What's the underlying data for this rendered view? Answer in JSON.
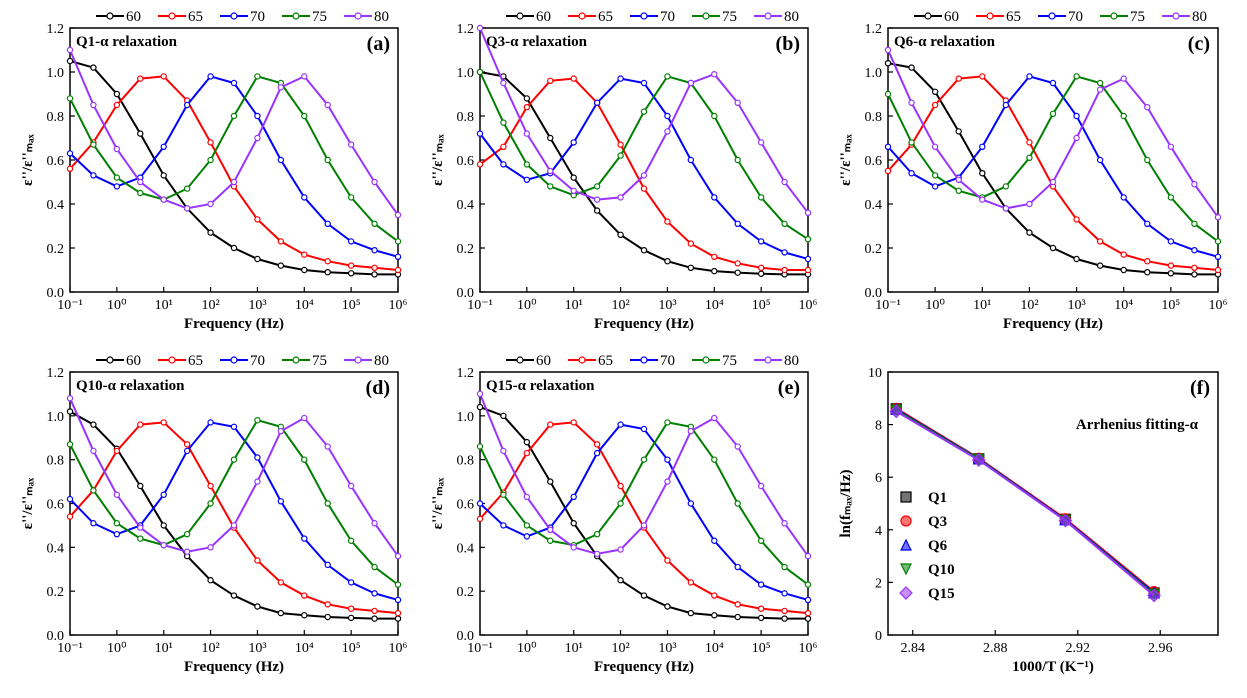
{
  "chart_data": [
    {
      "type": "line",
      "title": "Q1-α relaxation",
      "panel_label": "(a)",
      "x_label": "Frequency (Hz)",
      "y_label": "ε''/ε''ₘₐₓ",
      "xscale": "log",
      "x": [
        0.1,
        0.316,
        1,
        3.16,
        10,
        31.6,
        100,
        316,
        1000,
        3160,
        10000,
        31600,
        100000,
        316000,
        1000000
      ],
      "xlim": [
        0.1,
        1000000
      ],
      "ylim": [
        0,
        1.2
      ],
      "xticks": [
        {
          "value": 0.1,
          "label": "10⁻¹"
        },
        {
          "value": 1,
          "label": "10⁰"
        },
        {
          "value": 10,
          "label": "10¹"
        },
        {
          "value": 100,
          "label": "10²"
        },
        {
          "value": 1000,
          "label": "10³"
        },
        {
          "value": 10000,
          "label": "10⁴"
        },
        {
          "value": 100000,
          "label": "10⁵"
        },
        {
          "value": 1000000,
          "label": "10⁶"
        }
      ],
      "yticks": [
        {
          "value": 0,
          "label": "0.0"
        },
        {
          "value": 0.2,
          "label": "0.2"
        },
        {
          "value": 0.4,
          "label": "0.4"
        },
        {
          "value": 0.6,
          "label": "0.6"
        },
        {
          "value": 0.8,
          "label": "0.8"
        },
        {
          "value": 1.0,
          "label": "1.0"
        },
        {
          "value": 1.2,
          "label": "1.2"
        }
      ],
      "series": [
        {
          "name": "60",
          "color": "#000000",
          "values": [
            1.05,
            1.02,
            0.9,
            0.72,
            0.53,
            0.38,
            0.27,
            0.2,
            0.15,
            0.12,
            0.1,
            0.09,
            0.085,
            0.08,
            0.08
          ]
        },
        {
          "name": "65",
          "color": "#ff0000",
          "values": [
            0.56,
            0.68,
            0.85,
            0.97,
            0.98,
            0.87,
            0.68,
            0.48,
            0.33,
            0.23,
            0.17,
            0.14,
            0.12,
            0.11,
            0.1
          ]
        },
        {
          "name": "70",
          "color": "#0000ff",
          "values": [
            0.63,
            0.53,
            0.48,
            0.52,
            0.66,
            0.85,
            0.98,
            0.95,
            0.8,
            0.6,
            0.43,
            0.31,
            0.23,
            0.19,
            0.16
          ]
        },
        {
          "name": "75",
          "color": "#008000",
          "values": [
            0.88,
            0.67,
            0.52,
            0.45,
            0.42,
            0.47,
            0.6,
            0.8,
            0.98,
            0.95,
            0.8,
            0.6,
            0.43,
            0.31,
            0.23
          ]
        },
        {
          "name": "80",
          "color": "#9933ff",
          "values": [
            1.1,
            0.85,
            0.65,
            0.5,
            0.42,
            0.38,
            0.4,
            0.5,
            0.7,
            0.93,
            0.98,
            0.85,
            0.67,
            0.5,
            0.35
          ]
        }
      ]
    },
    {
      "type": "line",
      "title": "Q3-α relaxation",
      "panel_label": "(b)",
      "x_label": "Frequency (Hz)",
      "y_label": "ε''/ε''ₘₐₓ",
      "xscale": "log",
      "x": [
        0.1,
        0.316,
        1,
        3.16,
        10,
        31.6,
        100,
        316,
        1000,
        3160,
        10000,
        31600,
        100000,
        316000,
        1000000
      ],
      "xlim": [
        0.1,
        1000000
      ],
      "ylim": [
        0,
        1.2
      ],
      "xticks": [
        {
          "value": 0.1,
          "label": "10⁻¹"
        },
        {
          "value": 1,
          "label": "10⁰"
        },
        {
          "value": 10,
          "label": "10¹"
        },
        {
          "value": 100,
          "label": "10²"
        },
        {
          "value": 1000,
          "label": "10³"
        },
        {
          "value": 10000,
          "label": "10⁴"
        },
        {
          "value": 100000,
          "label": "10⁵"
        },
        {
          "value": 1000000,
          "label": "10⁶"
        }
      ],
      "yticks": [
        {
          "value": 0,
          "label": "0.0"
        },
        {
          "value": 0.2,
          "label": "0.2"
        },
        {
          "value": 0.4,
          "label": "0.4"
        },
        {
          "value": 0.6,
          "label": "0.6"
        },
        {
          "value": 0.8,
          "label": "0.8"
        },
        {
          "value": 1.0,
          "label": "1.0"
        },
        {
          "value": 1.2,
          "label": "1.2"
        }
      ],
      "series": [
        {
          "name": "60",
          "color": "#000000",
          "values": [
            1.0,
            0.98,
            0.88,
            0.7,
            0.52,
            0.37,
            0.26,
            0.19,
            0.14,
            0.11,
            0.095,
            0.088,
            0.083,
            0.08,
            0.08
          ]
        },
        {
          "name": "65",
          "color": "#ff0000",
          "values": [
            0.58,
            0.66,
            0.84,
            0.96,
            0.97,
            0.86,
            0.67,
            0.47,
            0.32,
            0.22,
            0.16,
            0.13,
            0.11,
            0.1,
            0.1
          ]
        },
        {
          "name": "70",
          "color": "#0000ff",
          "values": [
            0.72,
            0.58,
            0.51,
            0.54,
            0.68,
            0.86,
            0.97,
            0.95,
            0.8,
            0.6,
            0.43,
            0.31,
            0.23,
            0.18,
            0.15
          ]
        },
        {
          "name": "75",
          "color": "#008000",
          "values": [
            1.0,
            0.77,
            0.58,
            0.48,
            0.44,
            0.48,
            0.62,
            0.82,
            0.98,
            0.95,
            0.8,
            0.6,
            0.43,
            0.31,
            0.24
          ]
        },
        {
          "name": "80",
          "color": "#9933ff",
          "values": [
            1.2,
            0.95,
            0.72,
            0.55,
            0.46,
            0.42,
            0.43,
            0.53,
            0.73,
            0.95,
            0.99,
            0.86,
            0.68,
            0.5,
            0.36
          ]
        }
      ]
    },
    {
      "type": "line",
      "title": "Q6-α relaxation",
      "panel_label": "(c)",
      "x_label": "Frequency (Hz)",
      "y_label": "ε''/ε''ₘₐₓ",
      "xscale": "log",
      "x": [
        0.1,
        0.316,
        1,
        3.16,
        10,
        31.6,
        100,
        316,
        1000,
        3160,
        10000,
        31600,
        100000,
        316000,
        1000000
      ],
      "xlim": [
        0.1,
        1000000
      ],
      "ylim": [
        0,
        1.2
      ],
      "xticks": [
        {
          "value": 0.1,
          "label": "10⁻¹"
        },
        {
          "value": 1,
          "label": "10⁰"
        },
        {
          "value": 10,
          "label": "10¹"
        },
        {
          "value": 100,
          "label": "10²"
        },
        {
          "value": 1000,
          "label": "10³"
        },
        {
          "value": 10000,
          "label": "10⁴"
        },
        {
          "value": 100000,
          "label": "10⁵"
        },
        {
          "value": 1000000,
          "label": "10⁶"
        }
      ],
      "yticks": [
        {
          "value": 0,
          "label": "0.0"
        },
        {
          "value": 0.2,
          "label": "0.2"
        },
        {
          "value": 0.4,
          "label": "0.4"
        },
        {
          "value": 0.6,
          "label": "0.6"
        },
        {
          "value": 0.8,
          "label": "0.8"
        },
        {
          "value": 1.0,
          "label": "1.0"
        },
        {
          "value": 1.2,
          "label": "1.2"
        }
      ],
      "series": [
        {
          "name": "60",
          "color": "#000000",
          "values": [
            1.04,
            1.02,
            0.91,
            0.73,
            0.54,
            0.38,
            0.27,
            0.2,
            0.15,
            0.12,
            0.1,
            0.09,
            0.085,
            0.08,
            0.08
          ]
        },
        {
          "name": "65",
          "color": "#ff0000",
          "values": [
            0.55,
            0.67,
            0.85,
            0.97,
            0.98,
            0.87,
            0.68,
            0.48,
            0.33,
            0.23,
            0.17,
            0.14,
            0.12,
            0.11,
            0.1
          ]
        },
        {
          "name": "70",
          "color": "#0000ff",
          "values": [
            0.66,
            0.54,
            0.48,
            0.52,
            0.66,
            0.85,
            0.98,
            0.95,
            0.8,
            0.6,
            0.43,
            0.31,
            0.23,
            0.19,
            0.16
          ]
        },
        {
          "name": "75",
          "color": "#008000",
          "values": [
            0.9,
            0.68,
            0.53,
            0.46,
            0.43,
            0.48,
            0.61,
            0.81,
            0.98,
            0.95,
            0.8,
            0.6,
            0.43,
            0.31,
            0.23
          ]
        },
        {
          "name": "80",
          "color": "#9933ff",
          "values": [
            1.1,
            0.86,
            0.66,
            0.51,
            0.42,
            0.38,
            0.4,
            0.5,
            0.7,
            0.92,
            0.97,
            0.84,
            0.66,
            0.49,
            0.34
          ]
        }
      ]
    },
    {
      "type": "line",
      "title": "Q10-α relaxation",
      "panel_label": "(d)",
      "x_label": "Frequency (Hz)",
      "y_label": "ε''/ε''ₘₐₓ",
      "xscale": "log",
      "x": [
        0.1,
        0.316,
        1,
        3.16,
        10,
        31.6,
        100,
        316,
        1000,
        3160,
        10000,
        31600,
        100000,
        316000,
        1000000
      ],
      "xlim": [
        0.1,
        1000000
      ],
      "ylim": [
        0,
        1.2
      ],
      "xticks": [
        {
          "value": 0.1,
          "label": "10⁻¹"
        },
        {
          "value": 1,
          "label": "10⁰"
        },
        {
          "value": 10,
          "label": "10¹"
        },
        {
          "value": 100,
          "label": "10²"
        },
        {
          "value": 1000,
          "label": "10³"
        },
        {
          "value": 10000,
          "label": "10⁴"
        },
        {
          "value": 100000,
          "label": "10⁵"
        },
        {
          "value": 1000000,
          "label": "10⁶"
        }
      ],
      "yticks": [
        {
          "value": 0,
          "label": "0.0"
        },
        {
          "value": 0.2,
          "label": "0.2"
        },
        {
          "value": 0.4,
          "label": "0.4"
        },
        {
          "value": 0.6,
          "label": "0.6"
        },
        {
          "value": 0.8,
          "label": "0.8"
        },
        {
          "value": 1.0,
          "label": "1.0"
        },
        {
          "value": 1.2,
          "label": "1.2"
        }
      ],
      "series": [
        {
          "name": "60",
          "color": "#000000",
          "values": [
            1.02,
            0.96,
            0.85,
            0.68,
            0.5,
            0.36,
            0.25,
            0.18,
            0.13,
            0.1,
            0.09,
            0.082,
            0.078,
            0.075,
            0.075
          ]
        },
        {
          "name": "65",
          "color": "#ff0000",
          "values": [
            0.54,
            0.66,
            0.84,
            0.96,
            0.97,
            0.87,
            0.68,
            0.49,
            0.34,
            0.24,
            0.18,
            0.14,
            0.12,
            0.11,
            0.1
          ]
        },
        {
          "name": "70",
          "color": "#0000ff",
          "values": [
            0.62,
            0.51,
            0.46,
            0.5,
            0.64,
            0.84,
            0.97,
            0.95,
            0.81,
            0.61,
            0.44,
            0.32,
            0.24,
            0.19,
            0.16
          ]
        },
        {
          "name": "75",
          "color": "#008000",
          "values": [
            0.87,
            0.66,
            0.51,
            0.44,
            0.41,
            0.46,
            0.6,
            0.8,
            0.98,
            0.95,
            0.8,
            0.6,
            0.43,
            0.31,
            0.23
          ]
        },
        {
          "name": "80",
          "color": "#9933ff",
          "values": [
            1.08,
            0.84,
            0.64,
            0.49,
            0.41,
            0.38,
            0.4,
            0.5,
            0.7,
            0.93,
            0.99,
            0.86,
            0.68,
            0.51,
            0.36
          ]
        }
      ]
    },
    {
      "type": "line",
      "title": "Q15-α relaxation",
      "panel_label": "(e)",
      "x_label": "Frequency (Hz)",
      "y_label": "ε''/ε''ₘₐₓ",
      "xscale": "log",
      "x": [
        0.1,
        0.316,
        1,
        3.16,
        10,
        31.6,
        100,
        316,
        1000,
        3160,
        10000,
        31600,
        100000,
        316000,
        1000000
      ],
      "xlim": [
        0.1,
        1000000
      ],
      "ylim": [
        0,
        1.2
      ],
      "xticks": [
        {
          "value": 0.1,
          "label": "10⁻¹"
        },
        {
          "value": 1,
          "label": "10⁰"
        },
        {
          "value": 10,
          "label": "10¹"
        },
        {
          "value": 100,
          "label": "10²"
        },
        {
          "value": 1000,
          "label": "10³"
        },
        {
          "value": 10000,
          "label": "10⁴"
        },
        {
          "value": 100000,
          "label": "10⁵"
        },
        {
          "value": 1000000,
          "label": "10⁶"
        }
      ],
      "yticks": [
        {
          "value": 0,
          "label": "0.0"
        },
        {
          "value": 0.2,
          "label": "0.2"
        },
        {
          "value": 0.4,
          "label": "0.4"
        },
        {
          "value": 0.6,
          "label": "0.6"
        },
        {
          "value": 0.8,
          "label": "0.8"
        },
        {
          "value": 1.0,
          "label": "1.0"
        },
        {
          "value": 1.2,
          "label": "1.2"
        }
      ],
      "series": [
        {
          "name": "60",
          "color": "#000000",
          "values": [
            1.04,
            1.0,
            0.88,
            0.7,
            0.51,
            0.36,
            0.25,
            0.18,
            0.13,
            0.1,
            0.09,
            0.082,
            0.078,
            0.075,
            0.075
          ]
        },
        {
          "name": "65",
          "color": "#ff0000",
          "values": [
            0.53,
            0.65,
            0.83,
            0.96,
            0.97,
            0.87,
            0.68,
            0.49,
            0.34,
            0.24,
            0.18,
            0.14,
            0.12,
            0.11,
            0.1
          ]
        },
        {
          "name": "70",
          "color": "#0000ff",
          "values": [
            0.6,
            0.5,
            0.45,
            0.49,
            0.63,
            0.83,
            0.96,
            0.94,
            0.8,
            0.6,
            0.43,
            0.31,
            0.23,
            0.19,
            0.16
          ]
        },
        {
          "name": "75",
          "color": "#008000",
          "values": [
            0.86,
            0.64,
            0.5,
            0.43,
            0.41,
            0.46,
            0.6,
            0.8,
            0.97,
            0.95,
            0.8,
            0.6,
            0.43,
            0.31,
            0.23
          ]
        },
        {
          "name": "80",
          "color": "#9933ff",
          "values": [
            1.1,
            0.84,
            0.63,
            0.48,
            0.4,
            0.37,
            0.39,
            0.5,
            0.7,
            0.93,
            0.99,
            0.86,
            0.68,
            0.51,
            0.36
          ]
        }
      ]
    },
    {
      "type": "scatter",
      "panel_label": "(f)",
      "annotation": "Arrhenius fitting-α",
      "x_label": "1000/T (K⁻¹)",
      "y_label": "ln(fₘₐₓ/Hz)",
      "xlim": [
        2.828,
        2.988
      ],
      "ylim": [
        0,
        10
      ],
      "xticks": [
        2.84,
        2.88,
        2.92,
        2.96
      ],
      "yticks": [
        0,
        2,
        4,
        6,
        8,
        10
      ],
      "legend": "lower left",
      "series": [
        {
          "name": "Q1",
          "color": "#000000",
          "marker": "square",
          "x": [
            2.832,
            2.872,
            2.914,
            2.957
          ],
          "values": [
            8.6,
            6.7,
            4.4,
            1.6
          ]
        },
        {
          "name": "Q3",
          "color": "#ff0000",
          "marker": "circle",
          "x": [
            2.832,
            2.872,
            2.914,
            2.957
          ],
          "values": [
            8.62,
            6.72,
            4.42,
            1.65
          ]
        },
        {
          "name": "Q6",
          "color": "#0000ff",
          "marker": "triangle",
          "x": [
            2.832,
            2.872,
            2.914,
            2.957
          ],
          "values": [
            8.58,
            6.7,
            4.38,
            1.6
          ]
        },
        {
          "name": "Q10",
          "color": "#008000",
          "marker": "triangle-down",
          "x": [
            2.832,
            2.872,
            2.914,
            2.957
          ],
          "values": [
            8.55,
            6.68,
            4.36,
            1.55
          ]
        },
        {
          "name": "Q15",
          "color": "#9933ff",
          "marker": "diamond",
          "x": [
            2.832,
            2.872,
            2.914,
            2.957
          ],
          "values": [
            8.5,
            6.65,
            4.35,
            1.5
          ]
        }
      ]
    }
  ]
}
